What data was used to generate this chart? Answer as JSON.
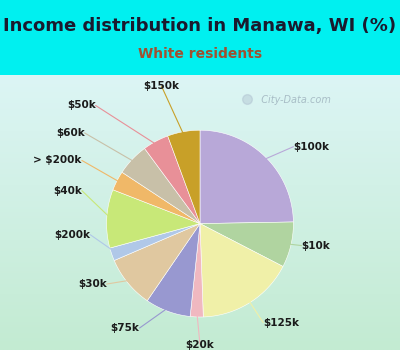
{
  "title": "Income distribution in Manawa, WI (%)",
  "subtitle": "White residents",
  "title_color": "#1a1a2e",
  "subtitle_color": "#a05030",
  "background_cyan": "#00f0f0",
  "background_inner_top": "#e0f5f5",
  "background_inner_bot": "#d0eedd",
  "watermark": "City-Data.com",
  "slices": [
    {
      "label": "$100k",
      "value": 22,
      "color": "#b8a8d8"
    },
    {
      "label": "$10k",
      "value": 7,
      "color": "#b0d4a0"
    },
    {
      "label": "$125k",
      "value": 15,
      "color": "#f0f0a8"
    },
    {
      "label": "$20k",
      "value": 2,
      "color": "#f0b8c0"
    },
    {
      "label": "$75k",
      "value": 7,
      "color": "#9898d0"
    },
    {
      "label": "$30k",
      "value": 8,
      "color": "#e0c8a0"
    },
    {
      "label": "$200k",
      "value": 2,
      "color": "#b0c8e8"
    },
    {
      "label": "$40k",
      "value": 9,
      "color": "#c8e878"
    },
    {
      "label": "> $200k",
      "value": 3,
      "color": "#f0b868"
    },
    {
      "label": "$60k",
      "value": 5,
      "color": "#c8c0a8"
    },
    {
      "label": "$50k",
      "value": 4,
      "color": "#e89098"
    },
    {
      "label": "$150k",
      "value": 5,
      "color": "#c8a028"
    }
  ],
  "label_fontsize": 7.5,
  "title_fontsize": 13,
  "subtitle_fontsize": 10
}
